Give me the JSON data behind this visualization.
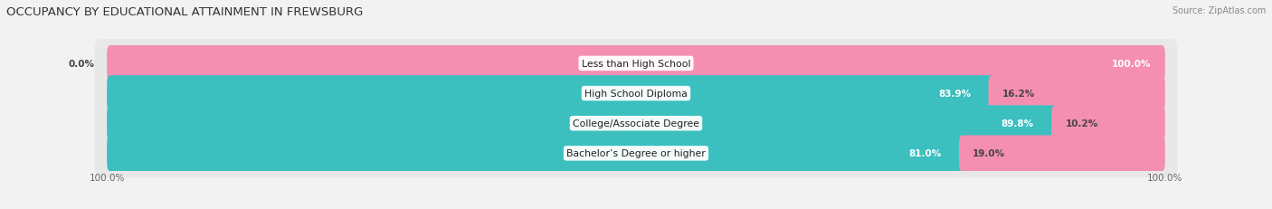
{
  "title": "OCCUPANCY BY EDUCATIONAL ATTAINMENT IN FREWSBURG",
  "source": "Source: ZipAtlas.com",
  "categories": [
    "Less than High School",
    "High School Diploma",
    "College/Associate Degree",
    "Bachelor’s Degree or higher"
  ],
  "owner_pct": [
    0.0,
    83.9,
    89.8,
    81.0
  ],
  "renter_pct": [
    100.0,
    16.2,
    10.2,
    19.0
  ],
  "owner_color": "#3bbfbf",
  "renter_color": "#f48fb1",
  "bg_color": "#f2f2f2",
  "bar_bg_color": "#e8e8e8",
  "bar_height": 0.62,
  "title_fontsize": 9.5,
  "label_fontsize": 7.8,
  "pct_fontsize": 7.5,
  "legend_fontsize": 8,
  "axis_label_fontsize": 7.5,
  "source_fontsize": 7
}
